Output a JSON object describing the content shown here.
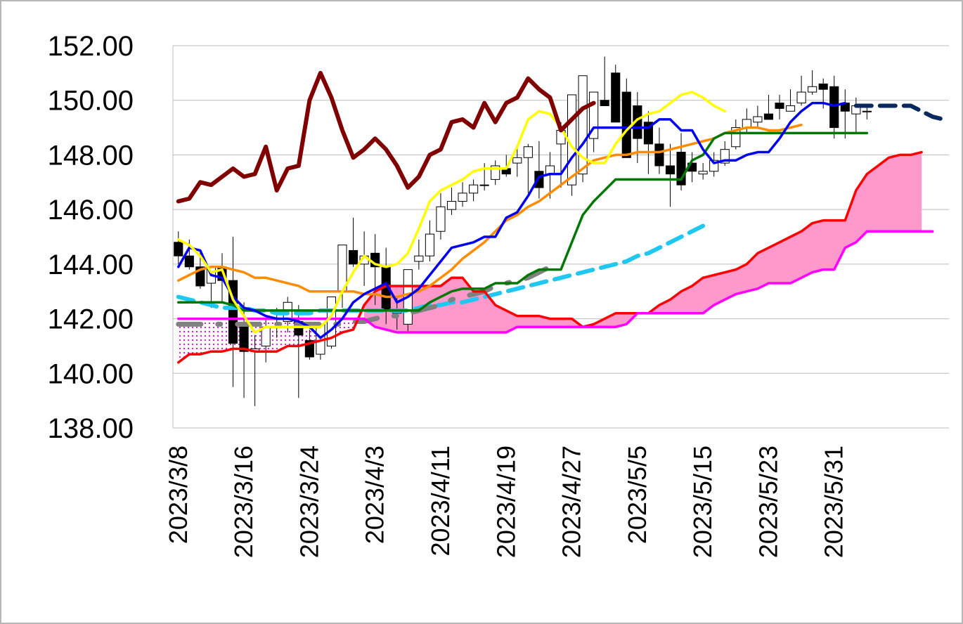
{
  "chart_data": {
    "type": "candlestick",
    "title": "",
    "xlabel": "",
    "ylabel": "",
    "ylim": [
      138,
      152
    ],
    "y_ticks": [
      "138.00",
      "140.00",
      "142.00",
      "144.00",
      "146.00",
      "148.00",
      "150.00",
      "152.00"
    ],
    "x_tick_labels": [
      "2023/3/8",
      "2023/3/16",
      "2023/3/24",
      "2023/4/3",
      "2023/4/11",
      "2023/4/19",
      "2023/4/27",
      "2023/5/5",
      "2023/5/15",
      "2023/5/23",
      "2023/5/31"
    ],
    "x_tick_index": [
      0,
      6,
      12,
      18,
      24,
      30,
      36,
      42,
      48,
      54,
      60
    ],
    "total_slots": 71,
    "grid": true,
    "legend": "none",
    "candles": {
      "open": [
        144.8,
        144.3,
        143.9,
        143.3,
        143.9,
        143.4,
        141.7,
        140.8,
        141.0,
        141.7,
        141.9,
        141.9,
        141.2,
        140.7,
        141.0,
        143.0,
        144.5,
        144.0,
        144.4,
        143.9,
        142.2,
        141.8,
        144.1,
        144.3,
        145.2,
        146.0,
        146.3,
        146.6,
        146.9,
        147.1,
        147.5,
        147.7,
        147.9,
        147.4,
        147.3,
        148.4,
        146.9,
        147.3,
        148.6,
        150.0,
        151.0,
        150.3,
        149.8,
        149.2,
        148.4,
        147.6,
        148.1,
        147.7,
        147.3,
        147.4,
        147.7,
        148.3,
        149.0,
        149.2,
        149.5,
        149.9,
        149.6,
        149.9,
        150.3,
        150.6,
        150.5,
        149.9,
        149.5,
        149.6
      ],
      "high": [
        145.2,
        144.9,
        144.4,
        143.8,
        144.4,
        145.0,
        142.6,
        141.4,
        142.0,
        142.4,
        142.8,
        142.5,
        141.6,
        141.4,
        142.3,
        144.3,
        145.7,
        145.2,
        145.1,
        144.6,
        142.8,
        143.1,
        144.9,
        145.6,
        146.6,
        146.8,
        147.0,
        147.1,
        147.7,
        147.8,
        148.0,
        148.3,
        148.4,
        148.5,
        148.1,
        149.2,
        148.3,
        148.4,
        149.9,
        151.6,
        151.3,
        150.8,
        150.3,
        149.6,
        149.0,
        148.4,
        148.8,
        148.1,
        147.7,
        148.1,
        148.5,
        149.3,
        149.7,
        149.8,
        150.2,
        150.2,
        150.4,
        150.9,
        151.1,
        150.8,
        150.9,
        150.4,
        150.1,
        149.8
      ],
      "low": [
        144.0,
        143.8,
        143.1,
        142.4,
        142.6,
        139.5,
        139.1,
        138.8,
        140.4,
        141.3,
        141.5,
        139.1,
        140.5,
        140.5,
        140.9,
        142.4,
        143.9,
        143.2,
        142.5,
        141.8,
        141.6,
        141.5,
        143.8,
        144.1,
        144.9,
        145.8,
        146.1,
        146.3,
        146.7,
        146.9,
        147.2,
        147.2,
        146.6,
        146.4,
        146.4,
        146.8,
        146.5,
        147.0,
        148.1,
        149.8,
        149.7,
        148.9,
        147.7,
        147.3,
        147.3,
        146.1,
        146.7,
        147.0,
        147.1,
        147.2,
        147.6,
        148.2,
        148.8,
        149.0,
        149.3,
        149.3,
        149.6,
        149.8,
        150.2,
        149.7,
        148.6,
        148.6,
        148.8,
        149.3
      ],
      "close": [
        144.3,
        143.9,
        143.2,
        143.9,
        143.4,
        141.1,
        140.8,
        140.9,
        141.7,
        141.7,
        142.6,
        141.4,
        140.6,
        141.8,
        142.8,
        144.7,
        144.0,
        144.3,
        143.9,
        142.3,
        142.3,
        143.8,
        144.3,
        145.1,
        146.1,
        146.3,
        146.6,
        146.9,
        146.9,
        147.6,
        147.3,
        147.9,
        148.3,
        146.8,
        147.6,
        148.9,
        150.2,
        150.9,
        150.3,
        149.8,
        149.2,
        147.9,
        148.6,
        148.4,
        147.6,
        147.3,
        146.9,
        147.4,
        147.4,
        147.8,
        148.2,
        149.0,
        149.3,
        149.4,
        149.3,
        149.7,
        149.8,
        150.3,
        150.5,
        150.4,
        149.0,
        149.6,
        149.8,
        149.6
      ]
    },
    "series": [
      {
        "color": "#0000ee",
        "start": 0,
        "values": [
          143.9,
          144.6,
          144.5,
          143.6,
          143.5,
          142.8,
          142.4,
          142.3,
          142.1,
          142.0,
          142.0,
          141.9,
          141.7,
          141.3,
          141.6,
          142.0,
          142.6,
          142.9,
          143.1,
          143.3,
          142.6,
          142.8,
          143.1,
          143.6,
          144.1,
          144.6,
          144.7,
          144.8,
          145.0,
          145.0,
          145.7,
          145.9,
          146.5,
          147.2,
          147.3,
          147.3,
          147.9,
          148.4,
          149.0,
          149.0,
          149.0,
          149.0,
          149.0,
          149.0,
          149.3,
          149.3,
          148.9,
          148.9,
          148.2,
          147.7,
          147.8,
          147.8,
          148.0,
          148.1,
          148.1,
          148.6,
          149.2,
          149.6,
          149.9,
          149.9,
          149.8,
          149.9
        ]
      },
      {
        "color": "#007700",
        "start": 0,
        "values": [
          142.6,
          142.6,
          142.6,
          142.6,
          142.6,
          142.5,
          142.3,
          142.3,
          142.3,
          142.3,
          142.3,
          142.3,
          142.3,
          142.3,
          142.3,
          142.3,
          142.3,
          142.3,
          142.3,
          142.3,
          142.3,
          142.3,
          142.3,
          142.6,
          142.8,
          143.0,
          143.1,
          143.1,
          143.1,
          143.3,
          143.3,
          143.3,
          143.6,
          143.8,
          143.8,
          143.8,
          144.8,
          145.8,
          146.3,
          146.7,
          147.1,
          147.1,
          147.1,
          147.1,
          147.1,
          147.1,
          147.1,
          147.8,
          148.0,
          148.6,
          148.8,
          148.8,
          148.8,
          148.8,
          148.8,
          148.8,
          148.8,
          148.8,
          148.8,
          148.8,
          148.8,
          148.8,
          148.8,
          148.8
        ]
      },
      {
        "color": "#ff8c00",
        "start": 0,
        "values": [
          143.4,
          143.6,
          143.8,
          143.9,
          143.9,
          143.8,
          143.7,
          143.5,
          143.5,
          143.4,
          143.3,
          143.2,
          143.0,
          143.0,
          143.0,
          143.0,
          143.0,
          142.9,
          142.9,
          142.8,
          142.8,
          142.9,
          143.0,
          143.2,
          143.5,
          143.8,
          144.2,
          144.5,
          144.8,
          145.2,
          145.6,
          145.8,
          146.1,
          146.3,
          146.6,
          146.9,
          147.2,
          147.5,
          147.8,
          147.9,
          148.0,
          148.0,
          148.1,
          148.1,
          148.1,
          148.2,
          148.3,
          148.4,
          148.5,
          148.6,
          148.8,
          148.9,
          149.0,
          149.0,
          148.9,
          148.9,
          149.0,
          149.1
        ]
      },
      {
        "color": "#ffff00",
        "start": 0,
        "values": [
          144.9,
          144.7,
          144.3,
          143.7,
          143.8,
          142.7,
          142.1,
          141.5,
          141.7,
          141.7,
          141.7,
          141.7,
          141.7,
          141.7,
          142.1,
          143.0,
          143.7,
          144.3,
          144.0,
          143.9,
          144.0,
          144.4,
          145.3,
          146.3,
          146.7,
          146.9,
          147.1,
          147.4,
          147.5,
          147.5,
          147.5,
          148.3,
          149.3,
          149.6,
          149.5,
          149.0,
          148.3,
          147.9,
          147.7,
          147.7,
          148.4,
          148.9,
          149.3,
          149.5,
          149.6,
          149.9,
          150.2,
          150.3,
          150.1,
          149.8,
          149.6
        ]
      },
      {
        "color": "#800000",
        "start": 0,
        "values": [
          146.3,
          146.4,
          147.0,
          146.9,
          147.2,
          147.5,
          147.2,
          147.3,
          148.3,
          146.7,
          147.5,
          147.6,
          150.0,
          151.0,
          150.1,
          148.9,
          147.9,
          148.2,
          148.6,
          148.2,
          147.6,
          146.8,
          147.2,
          148.0,
          148.2,
          149.2,
          149.3,
          149.0,
          149.9,
          149.2,
          149.9,
          150.1,
          150.8,
          150.4,
          150.1,
          148.9,
          149.3,
          149.7,
          149.9
        ]
      },
      {
        "color": "#ff0000",
        "start": 0,
        "values": [
          140.4,
          140.7,
          140.7,
          140.8,
          140.8,
          140.9,
          140.9,
          140.8,
          140.8,
          140.8,
          141.0,
          141.0,
          141.1,
          141.2,
          141.3,
          141.5,
          141.6,
          142.5,
          143.0,
          143.2,
          143.2,
          143.2,
          143.2,
          143.2,
          143.2,
          143.5,
          143.5,
          143.0,
          143.0,
          142.5,
          142.3,
          142.1,
          142.1,
          142.1,
          142.0,
          142.0,
          142.0,
          141.7,
          141.8,
          142.0,
          142.2,
          142.2,
          142.2,
          142.2,
          142.5,
          142.7,
          143.0,
          143.2,
          143.5,
          143.6,
          143.7,
          143.8,
          144.0,
          144.4,
          144.6,
          144.8,
          145.0,
          145.2,
          145.5,
          145.6,
          145.6,
          145.6,
          146.7,
          147.3,
          147.6,
          147.9,
          148.0,
          148.0,
          148.1
        ]
      },
      {
        "color": "#ff00ff",
        "start": 0,
        "values": [
          142.0,
          142.0,
          142.0,
          142.0,
          142.0,
          142.0,
          142.0,
          142.0,
          142.0,
          142.0,
          142.0,
          142.0,
          142.0,
          142.0,
          142.0,
          142.0,
          142.0,
          142.0,
          141.7,
          141.6,
          141.5,
          141.5,
          141.5,
          141.5,
          141.5,
          141.5,
          141.5,
          141.5,
          141.5,
          141.5,
          141.5,
          141.7,
          141.7,
          141.7,
          141.7,
          141.7,
          141.7,
          141.7,
          141.7,
          141.7,
          141.7,
          141.8,
          142.2,
          142.2,
          142.2,
          142.2,
          142.2,
          142.2,
          142.2,
          142.5,
          142.7,
          142.9,
          143.0,
          143.1,
          143.3,
          143.3,
          143.3,
          143.5,
          143.7,
          143.8,
          143.8,
          144.6,
          144.8,
          145.2,
          145.2,
          145.2,
          145.2,
          145.2,
          145.2,
          145.2
        ]
      },
      {
        "color": "#1ec8f0",
        "start": 0,
        "values": [
          142.8,
          142.7,
          142.6,
          142.5,
          142.4,
          142.4,
          142.4,
          142.3,
          142.3,
          142.2,
          142.2,
          142.2,
          142.2,
          142.3,
          142.3,
          142.3,
          142.3,
          142.3,
          142.3,
          142.3,
          142.3,
          142.3,
          142.4,
          142.5,
          142.5,
          142.6,
          142.6,
          142.7,
          142.8,
          142.9,
          143.0,
          143.1,
          143.2,
          143.3,
          143.4,
          143.5,
          143.6,
          143.7,
          143.8,
          143.9,
          144.0,
          144.1,
          144.3,
          144.4,
          144.6,
          144.8,
          145.0,
          145.2,
          145.4
        ]
      },
      {
        "color": "#808080",
        "start": 0,
        "values": [
          141.8,
          141.8,
          141.8,
          141.8,
          141.8,
          141.8,
          141.8,
          141.8,
          141.8,
          141.8,
          141.8,
          141.8,
          141.8,
          141.8,
          141.8,
          141.8,
          141.9,
          141.9,
          142.0,
          142.1,
          142.1,
          142.2,
          142.3,
          142.4,
          142.5,
          142.7,
          142.8,
          142.9,
          143.0,
          143.2,
          143.3,
          143.4,
          143.5,
          143.7,
          143.9
        ]
      },
      {
        "color": "#0a2a5c",
        "start": 62,
        "values": [
          149.8,
          149.8,
          149.8,
          149.8,
          149.8,
          149.8,
          149.6,
          149.4,
          149.3
        ]
      }
    ]
  }
}
